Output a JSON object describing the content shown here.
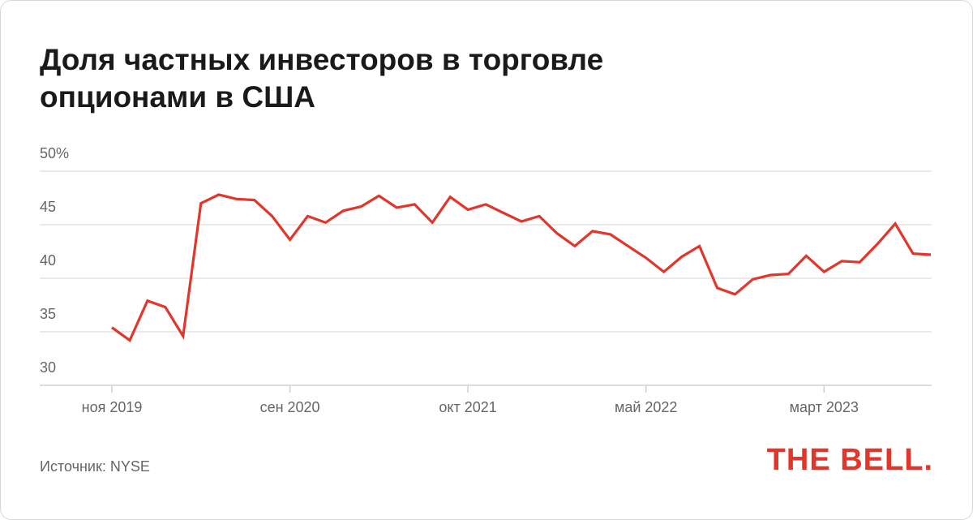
{
  "chart_data": {
    "type": "line",
    "title": "Доля частных инвесторов в торговле опционами в США",
    "source": "Источник: NYSE",
    "logo": "THE BELL.",
    "categories": [
      "ноя 2019",
      null,
      null,
      null,
      null,
      null,
      null,
      null,
      null,
      null,
      "сен 2020",
      null,
      null,
      null,
      null,
      null,
      null,
      null,
      null,
      null,
      "окт 2021",
      null,
      null,
      null,
      null,
      null,
      null,
      null,
      null,
      null,
      "май 2022",
      null,
      null,
      null,
      null,
      null,
      null,
      null,
      null,
      null,
      "март 2023",
      null,
      null,
      null,
      null,
      null,
      null
    ],
    "series": [
      {
        "color": "#e0362b",
        "values": [
          35.4,
          34.2,
          37.9,
          37.3,
          34.6,
          47.0,
          47.8,
          47.4,
          47.3,
          45.8,
          43.6,
          45.8,
          45.2,
          46.3,
          46.7,
          47.7,
          46.6,
          46.9,
          45.2,
          47.6,
          46.4,
          46.9,
          46.1,
          45.3,
          45.8,
          44.2,
          43.0,
          44.4,
          44.1,
          43.0,
          41.9,
          40.6,
          42.0,
          43.0,
          39.1,
          38.5,
          39.9,
          40.3,
          40.4,
          42.1,
          40.6,
          41.6,
          41.5,
          43.2,
          45.1,
          42.3,
          42.2
        ]
      }
    ],
    "ylim": [
      30,
      50
    ],
    "yticks": [
      30,
      35,
      40,
      45,
      {
        "value": 50,
        "label": "50%"
      }
    ],
    "grid": true
  }
}
